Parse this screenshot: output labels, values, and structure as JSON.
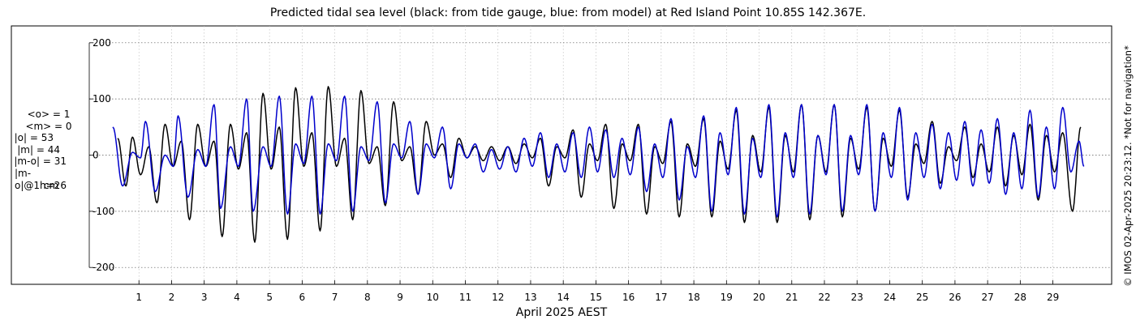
{
  "chart_data": {
    "type": "line",
    "title": "Predicted tidal sea level (black: from tide gauge, blue: from model) at Red Island Point 10.85S 142.367E.",
    "xlabel": "April 2025 AEST",
    "ylabel": "",
    "xlim": [
      0.0,
      30.8
    ],
    "ylim": [
      -230,
      230
    ],
    "x_ticks": [
      "1",
      "2",
      "3",
      "4",
      "5",
      "6",
      "7",
      "8",
      "9",
      "10",
      "11",
      "12",
      "13",
      "14",
      "15",
      "16",
      "17",
      "18",
      "19",
      "20",
      "21",
      "22",
      "23",
      "24",
      "25",
      "26",
      "27",
      "28",
      "29"
    ],
    "y_ticks": [
      "200",
      "100",
      "0",
      "-100",
      "-200"
    ],
    "y_tick_values": [
      200,
      100,
      0,
      -100,
      -200
    ],
    "grid": true,
    "series": [
      {
        "color": "#000000",
        "highs": [
          [
            0.35,
            30
          ],
          [
            0.8,
            32
          ],
          [
            1.3,
            15
          ],
          [
            1.8,
            55
          ],
          [
            2.3,
            25
          ],
          [
            2.8,
            55
          ],
          [
            3.3,
            25
          ],
          [
            3.8,
            55
          ],
          [
            4.3,
            40
          ],
          [
            4.8,
            110
          ],
          [
            5.3,
            50
          ],
          [
            5.8,
            120
          ],
          [
            6.3,
            40
          ],
          [
            6.8,
            122
          ],
          [
            7.3,
            30
          ],
          [
            7.8,
            115
          ],
          [
            8.3,
            15
          ],
          [
            8.8,
            95
          ],
          [
            9.3,
            15
          ],
          [
            9.8,
            60
          ],
          [
            10.3,
            20
          ],
          [
            10.8,
            30
          ],
          [
            11.3,
            15
          ],
          [
            11.8,
            15
          ],
          [
            12.3,
            15
          ],
          [
            12.8,
            20
          ],
          [
            13.3,
            30
          ],
          [
            13.8,
            15
          ],
          [
            14.3,
            45
          ],
          [
            14.8,
            20
          ],
          [
            15.3,
            55
          ],
          [
            15.8,
            20
          ],
          [
            16.3,
            55
          ],
          [
            16.8,
            15
          ],
          [
            17.3,
            60
          ],
          [
            17.8,
            20
          ],
          [
            18.3,
            65
          ],
          [
            18.8,
            25
          ],
          [
            19.3,
            80
          ],
          [
            19.8,
            35
          ],
          [
            20.3,
            85
          ],
          [
            20.8,
            35
          ],
          [
            21.3,
            90
          ],
          [
            21.8,
            35
          ],
          [
            22.3,
            90
          ],
          [
            22.8,
            30
          ],
          [
            23.3,
            85
          ],
          [
            23.8,
            30
          ],
          [
            24.3,
            80
          ],
          [
            24.8,
            20
          ],
          [
            25.3,
            60
          ],
          [
            25.8,
            15
          ],
          [
            26.3,
            50
          ],
          [
            26.8,
            20
          ],
          [
            27.3,
            50
          ],
          [
            27.8,
            35
          ],
          [
            28.3,
            55
          ],
          [
            28.8,
            35
          ],
          [
            29.3,
            40
          ],
          [
            29.85,
            50
          ]
        ],
        "lows": [
          [
            0.6,
            -55
          ],
          [
            1.05,
            -35
          ],
          [
            1.55,
            -85
          ],
          [
            2.05,
            -20
          ],
          [
            2.55,
            -115
          ],
          [
            3.05,
            -20
          ],
          [
            3.55,
            -145
          ],
          [
            4.05,
            -25
          ],
          [
            4.55,
            -155
          ],
          [
            5.05,
            -25
          ],
          [
            5.55,
            -150
          ],
          [
            6.05,
            -20
          ],
          [
            6.55,
            -135
          ],
          [
            7.05,
            -20
          ],
          [
            7.55,
            -115
          ],
          [
            8.05,
            -15
          ],
          [
            8.55,
            -90
          ],
          [
            9.05,
            -10
          ],
          [
            9.55,
            -70
          ],
          [
            10.05,
            0
          ],
          [
            10.55,
            -40
          ],
          [
            11.05,
            -5
          ],
          [
            11.55,
            -10
          ],
          [
            12.05,
            -10
          ],
          [
            12.55,
            -15
          ],
          [
            13.05,
            -5
          ],
          [
            13.55,
            -55
          ],
          [
            14.05,
            -5
          ],
          [
            14.55,
            -75
          ],
          [
            15.05,
            -10
          ],
          [
            15.55,
            -95
          ],
          [
            16.05,
            -10
          ],
          [
            16.55,
            -105
          ],
          [
            17.05,
            -15
          ],
          [
            17.55,
            -110
          ],
          [
            18.05,
            -20
          ],
          [
            18.55,
            -110
          ],
          [
            19.05,
            -25
          ],
          [
            19.55,
            -120
          ],
          [
            20.05,
            -30
          ],
          [
            20.55,
            -120
          ],
          [
            21.05,
            -30
          ],
          [
            21.55,
            -115
          ],
          [
            22.05,
            -30
          ],
          [
            22.55,
            -110
          ],
          [
            23.05,
            -25
          ],
          [
            23.55,
            -100
          ],
          [
            24.05,
            -20
          ],
          [
            24.55,
            -75
          ],
          [
            25.05,
            -15
          ],
          [
            25.55,
            -50
          ],
          [
            26.05,
            -10
          ],
          [
            26.55,
            -40
          ],
          [
            27.05,
            -30
          ],
          [
            27.55,
            -55
          ],
          [
            28.05,
            -35
          ],
          [
            28.55,
            -80
          ],
          [
            29.05,
            -30
          ],
          [
            29.6,
            -100
          ]
        ]
      },
      {
        "color": "#0000cc",
        "highs": [
          [
            0.2,
            50
          ],
          [
            0.8,
            5
          ],
          [
            1.2,
            60
          ],
          [
            1.8,
            0
          ],
          [
            2.2,
            70
          ],
          [
            2.8,
            10
          ],
          [
            3.3,
            90
          ],
          [
            3.8,
            15
          ],
          [
            4.3,
            100
          ],
          [
            4.8,
            15
          ],
          [
            5.3,
            105
          ],
          [
            5.8,
            20
          ],
          [
            6.3,
            105
          ],
          [
            6.8,
            20
          ],
          [
            7.3,
            105
          ],
          [
            7.8,
            15
          ],
          [
            8.3,
            95
          ],
          [
            8.8,
            20
          ],
          [
            9.3,
            60
          ],
          [
            9.8,
            20
          ],
          [
            10.3,
            50
          ],
          [
            10.8,
            20
          ],
          [
            11.3,
            20
          ],
          [
            11.8,
            10
          ],
          [
            12.3,
            15
          ],
          [
            12.8,
            30
          ],
          [
            13.3,
            40
          ],
          [
            13.8,
            20
          ],
          [
            14.3,
            40
          ],
          [
            14.8,
            50
          ],
          [
            15.3,
            45
          ],
          [
            15.8,
            30
          ],
          [
            16.3,
            50
          ],
          [
            16.8,
            20
          ],
          [
            17.3,
            65
          ],
          [
            17.8,
            15
          ],
          [
            18.3,
            70
          ],
          [
            18.8,
            40
          ],
          [
            19.3,
            85
          ],
          [
            19.8,
            30
          ],
          [
            20.3,
            90
          ],
          [
            20.8,
            40
          ],
          [
            21.3,
            90
          ],
          [
            21.8,
            35
          ],
          [
            22.3,
            90
          ],
          [
            22.8,
            35
          ],
          [
            23.3,
            90
          ],
          [
            23.8,
            40
          ],
          [
            24.3,
            85
          ],
          [
            24.8,
            40
          ],
          [
            25.3,
            55
          ],
          [
            25.8,
            40
          ],
          [
            26.3,
            60
          ],
          [
            26.8,
            45
          ],
          [
            27.3,
            65
          ],
          [
            27.8,
            40
          ],
          [
            28.3,
            80
          ],
          [
            28.8,
            50
          ],
          [
            29.3,
            85
          ],
          [
            29.8,
            25
          ]
        ],
        "lows": [
          [
            0.5,
            -55
          ],
          [
            1.05,
            -5
          ],
          [
            1.5,
            -65
          ],
          [
            2.05,
            -20
          ],
          [
            2.5,
            -75
          ],
          [
            3.05,
            -20
          ],
          [
            3.5,
            -95
          ],
          [
            4.05,
            -20
          ],
          [
            4.5,
            -100
          ],
          [
            5.05,
            -20
          ],
          [
            5.55,
            -105
          ],
          [
            6.05,
            -15
          ],
          [
            6.55,
            -105
          ],
          [
            7.05,
            -10
          ],
          [
            7.55,
            -100
          ],
          [
            8.05,
            -10
          ],
          [
            8.55,
            -85
          ],
          [
            9.05,
            -5
          ],
          [
            9.55,
            -70
          ],
          [
            10.05,
            -5
          ],
          [
            10.55,
            -60
          ],
          [
            11.05,
            -5
          ],
          [
            11.55,
            -30
          ],
          [
            12.05,
            -25
          ],
          [
            12.55,
            -30
          ],
          [
            13.05,
            -20
          ],
          [
            13.55,
            -40
          ],
          [
            14.05,
            -30
          ],
          [
            14.55,
            -40
          ],
          [
            15.05,
            -30
          ],
          [
            15.55,
            -40
          ],
          [
            16.05,
            -35
          ],
          [
            16.55,
            -65
          ],
          [
            17.05,
            -40
          ],
          [
            17.55,
            -80
          ],
          [
            18.05,
            -40
          ],
          [
            18.55,
            -100
          ],
          [
            19.05,
            -35
          ],
          [
            19.55,
            -105
          ],
          [
            20.05,
            -40
          ],
          [
            20.55,
            -110
          ],
          [
            21.05,
            -40
          ],
          [
            21.55,
            -105
          ],
          [
            22.05,
            -35
          ],
          [
            22.55,
            -100
          ],
          [
            23.05,
            -35
          ],
          [
            23.55,
            -100
          ],
          [
            24.05,
            -40
          ],
          [
            24.55,
            -80
          ],
          [
            25.05,
            -40
          ],
          [
            25.55,
            -60
          ],
          [
            26.05,
            -45
          ],
          [
            26.55,
            -55
          ],
          [
            27.05,
            -50
          ],
          [
            27.55,
            -70
          ],
          [
            28.05,
            -60
          ],
          [
            28.55,
            -75
          ],
          [
            29.05,
            -60
          ],
          [
            29.55,
            -30
          ],
          [
            29.95,
            -20
          ]
        ]
      }
    ],
    "stats": [
      "<o> = 1",
      "<m> = 0",
      "|o| = 53",
      "|m| = 44",
      "|m-o| = 31",
      "|m-o|@1h=26",
      "cm"
    ]
  },
  "copyright": "© IMOS 02-Apr-2025 20:23:12. *Not for navigation*"
}
